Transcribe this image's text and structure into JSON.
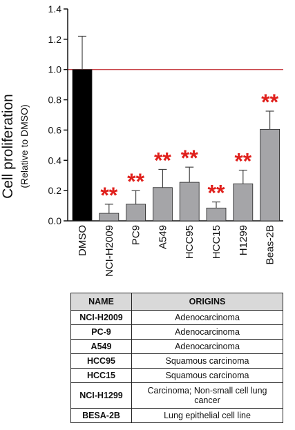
{
  "chart_data": {
    "type": "bar",
    "ylabel": "Cell proliferation",
    "ylabel_sub": "(Relative to DMSO)",
    "ylim": [
      0,
      1.4
    ],
    "yticks": [
      "0.0",
      "0.2",
      "0.4",
      "0.6",
      "0.8",
      "1.0",
      "1.2",
      "1.4"
    ],
    "reference_line": 1.0,
    "significance_label": "**",
    "categories": [
      "DMSO",
      "NCI-H2009",
      "PC9",
      "A549",
      "HCC95",
      "HCC15",
      "H1299",
      "Beas-2B"
    ],
    "values": [
      1.0,
      0.05,
      0.11,
      0.22,
      0.255,
      0.085,
      0.245,
      0.605
    ],
    "errors": [
      0.22,
      0.06,
      0.09,
      0.12,
      0.1,
      0.04,
      0.09,
      0.12
    ],
    "significant": [
      false,
      true,
      true,
      true,
      true,
      true,
      true,
      true
    ],
    "colors": {
      "control": "#000000",
      "treatment": "#a5a5a8",
      "reference_line": "#c0272d",
      "significance": "#e0201c"
    }
  },
  "table": {
    "headers": [
      "NAME",
      "ORIGINS"
    ],
    "rows": [
      {
        "name": "NCI-H2009",
        "origin": "Adenocarcinoma"
      },
      {
        "name": "PC-9",
        "origin": "Adenocarcinoma"
      },
      {
        "name": "A549",
        "origin": "Adenocarcinoma"
      },
      {
        "name": "HCC95",
        "origin": "Squamous carcinoma"
      },
      {
        "name": "HCC15",
        "origin": "Squamous carcinoma"
      },
      {
        "name": "NCI-H1299",
        "origin": "Carcinoma; Non-small cell lung cancer"
      },
      {
        "name": "BESA-2B",
        "origin": "Lung epithelial cell line"
      }
    ]
  }
}
